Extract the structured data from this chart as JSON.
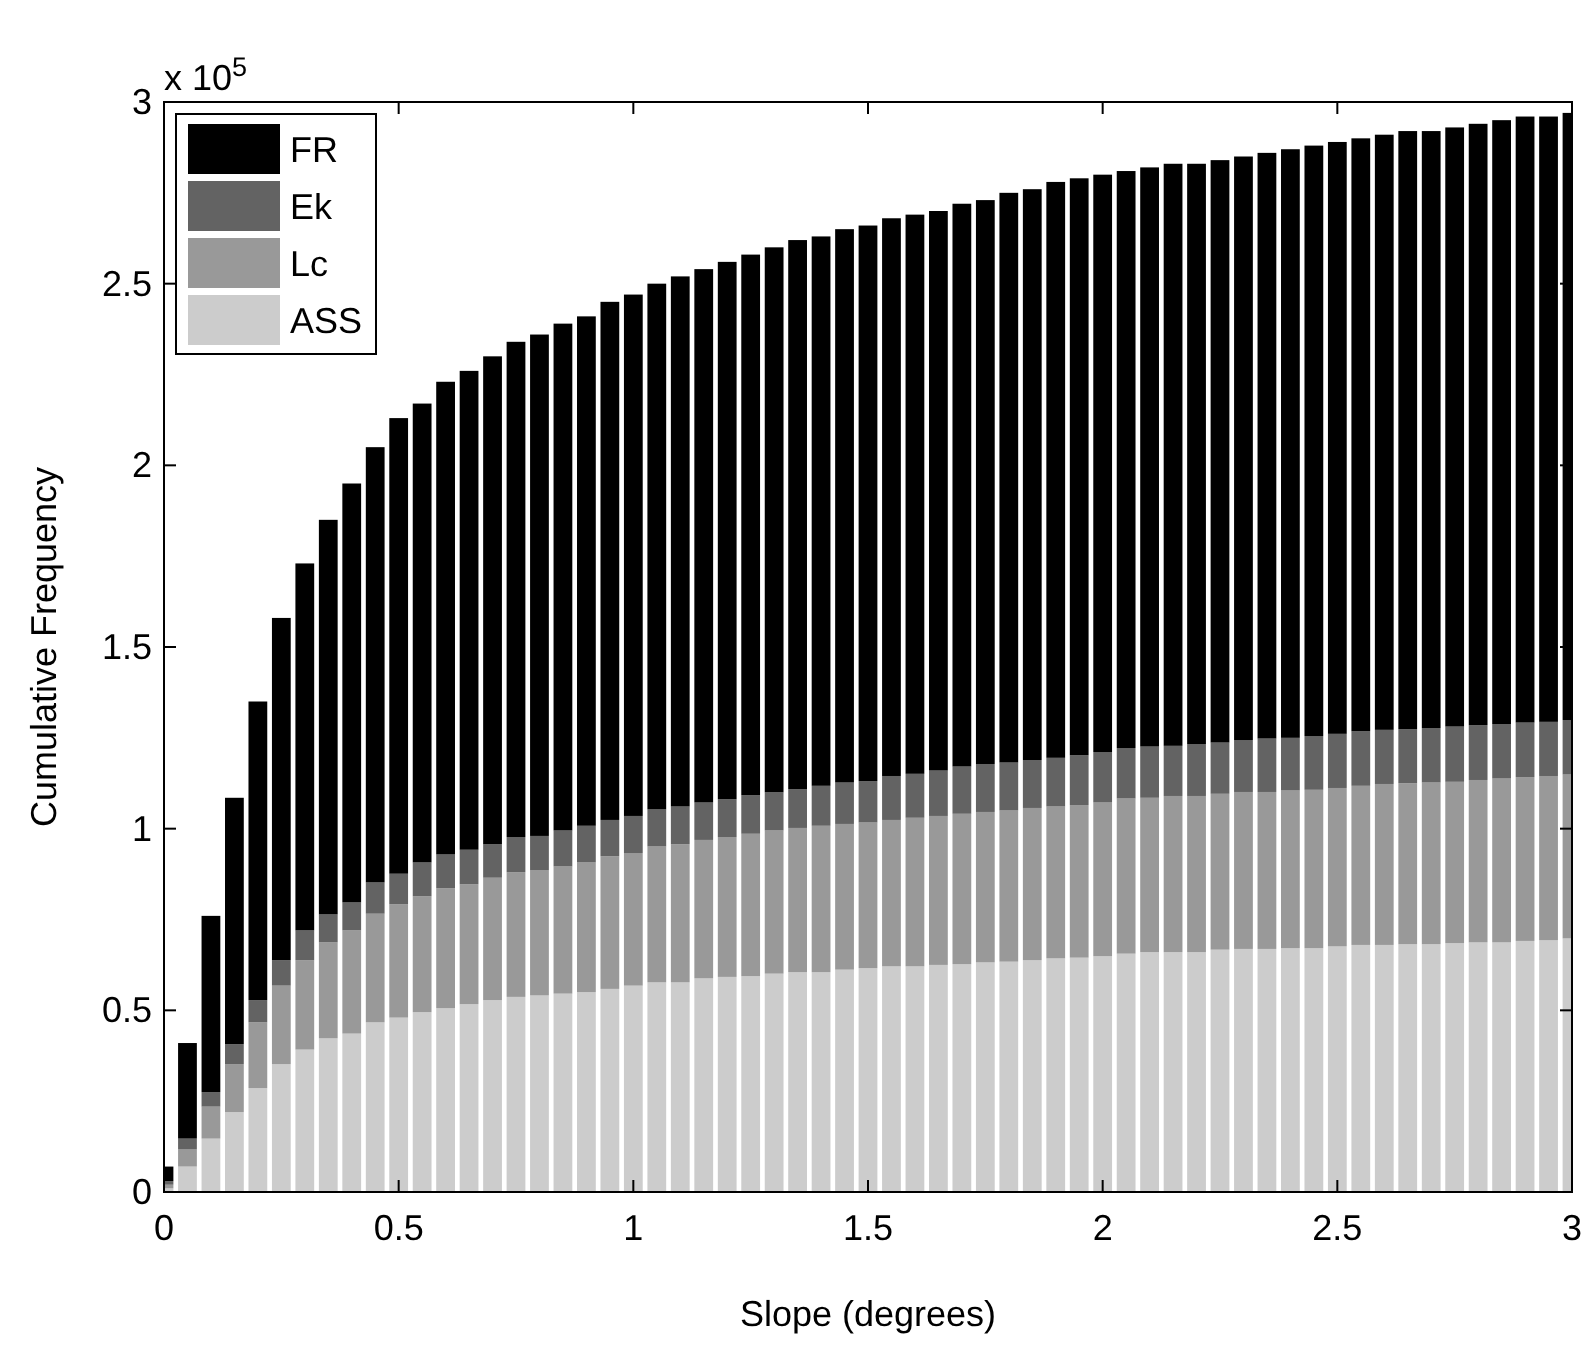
{
  "chart_data": {
    "type": "bar",
    "stacked": true,
    "xlabel": "Slope (degrees)",
    "ylabel": "Cumulative Frequency",
    "annotations": [
      "x 10$^{5}$"
    ],
    "x": [
      0,
      0.05,
      0.1,
      0.15,
      0.2,
      0.25,
      0.3,
      0.35,
      0.4,
      0.45,
      0.5,
      0.55,
      0.6,
      0.65,
      0.7,
      0.75,
      0.8,
      0.85,
      0.9,
      0.95,
      1,
      1.05,
      1.1,
      1.15,
      1.2,
      1.25,
      1.3,
      1.35,
      1.4,
      1.45,
      1.5,
      1.55,
      1.6,
      1.65,
      1.7,
      1.75,
      1.8,
      1.85,
      1.9,
      1.95,
      2,
      2.05,
      2.1,
      2.15,
      2.2,
      2.25,
      2.3,
      2.35,
      2.4,
      2.45,
      2.5,
      2.55,
      2.6,
      2.65,
      2.7,
      2.75,
      2.8,
      2.85,
      2.9,
      2.95,
      3
    ],
    "series": [
      {
        "name": "ASS",
        "color": "#cccccc",
        "values": [
          0.01,
          0.07,
          0.147,
          0.22,
          0.286,
          0.352,
          0.392,
          0.423,
          0.436,
          0.467,
          0.48,
          0.495,
          0.506,
          0.517,
          0.528,
          0.537,
          0.541,
          0.546,
          0.55,
          0.559,
          0.568,
          0.577,
          0.577,
          0.588,
          0.592,
          0.594,
          0.601,
          0.605,
          0.605,
          0.612,
          0.616,
          0.621,
          0.621,
          0.625,
          0.627,
          0.632,
          0.634,
          0.638,
          0.643,
          0.645,
          0.649,
          0.656,
          0.66,
          0.66,
          0.66,
          0.667,
          0.669,
          0.669,
          0.671,
          0.671,
          0.676,
          0.68,
          0.68,
          0.682,
          0.682,
          0.685,
          0.687,
          0.687,
          0.691,
          0.693,
          0.698
        ]
      },
      {
        "name": "Lc",
        "color": "#999999",
        "values": [
          0.01,
          0.047,
          0.088,
          0.132,
          0.181,
          0.216,
          0.246,
          0.264,
          0.284,
          0.299,
          0.312,
          0.319,
          0.33,
          0.33,
          0.337,
          0.343,
          0.344,
          0.35,
          0.357,
          0.365,
          0.365,
          0.374,
          0.38,
          0.381,
          0.385,
          0.392,
          0.394,
          0.397,
          0.403,
          0.401,
          0.401,
          0.403,
          0.409,
          0.41,
          0.414,
          0.414,
          0.416,
          0.419,
          0.418,
          0.42,
          0.423,
          0.427,
          0.425,
          0.43,
          0.43,
          0.429,
          0.432,
          0.432,
          0.434,
          0.436,
          0.436,
          0.438,
          0.443,
          0.443,
          0.445,
          0.444,
          0.447,
          0.451,
          0.451,
          0.452,
          0.451
        ]
      },
      {
        "name": "Ek",
        "color": "#636363",
        "values": [
          0.01,
          0.03,
          0.04,
          0.055,
          0.061,
          0.07,
          0.082,
          0.077,
          0.077,
          0.086,
          0.084,
          0.093,
          0.093,
          0.095,
          0.092,
          0.097,
          0.095,
          0.099,
          0.101,
          0.1,
          0.102,
          0.102,
          0.104,
          0.103,
          0.104,
          0.106,
          0.105,
          0.107,
          0.11,
          0.114,
          0.114,
          0.121,
          0.121,
          0.125,
          0.13,
          0.132,
          0.132,
          0.132,
          0.134,
          0.137,
          0.139,
          0.139,
          0.141,
          0.138,
          0.143,
          0.141,
          0.143,
          0.147,
          0.145,
          0.148,
          0.149,
          0.15,
          0.149,
          0.149,
          0.15,
          0.152,
          0.151,
          0.15,
          0.15,
          0.149,
          0.15
        ]
      },
      {
        "name": "FR",
        "color": "#000000",
        "values": [
          0.04,
          0.263,
          0.485,
          0.678,
          0.822,
          0.942,
          1.01,
          1.086,
          1.153,
          1.198,
          1.254,
          1.263,
          1.301,
          1.318,
          1.343,
          1.363,
          1.38,
          1.395,
          1.402,
          1.426,
          1.435,
          1.447,
          1.459,
          1.468,
          1.479,
          1.488,
          1.5,
          1.511,
          1.512,
          1.523,
          1.529,
          1.535,
          1.539,
          1.54,
          1.549,
          1.552,
          1.568,
          1.571,
          1.585,
          1.588,
          1.589,
          1.588,
          1.594,
          1.602,
          1.597,
          1.603,
          1.606,
          1.612,
          1.62,
          1.625,
          1.629,
          1.632,
          1.638,
          1.646,
          1.643,
          1.649,
          1.655,
          1.662,
          1.668,
          1.666,
          1.671
        ]
      }
    ],
    "xlim": [
      0,
      3
    ],
    "xticks": [
      0,
      0.5,
      1,
      1.5,
      2,
      2.5,
      3
    ],
    "ylim": [
      0,
      3
    ],
    "yticks": [
      0,
      0.5,
      1,
      1.5,
      2,
      2.5,
      3
    ],
    "legend": "top left"
  }
}
